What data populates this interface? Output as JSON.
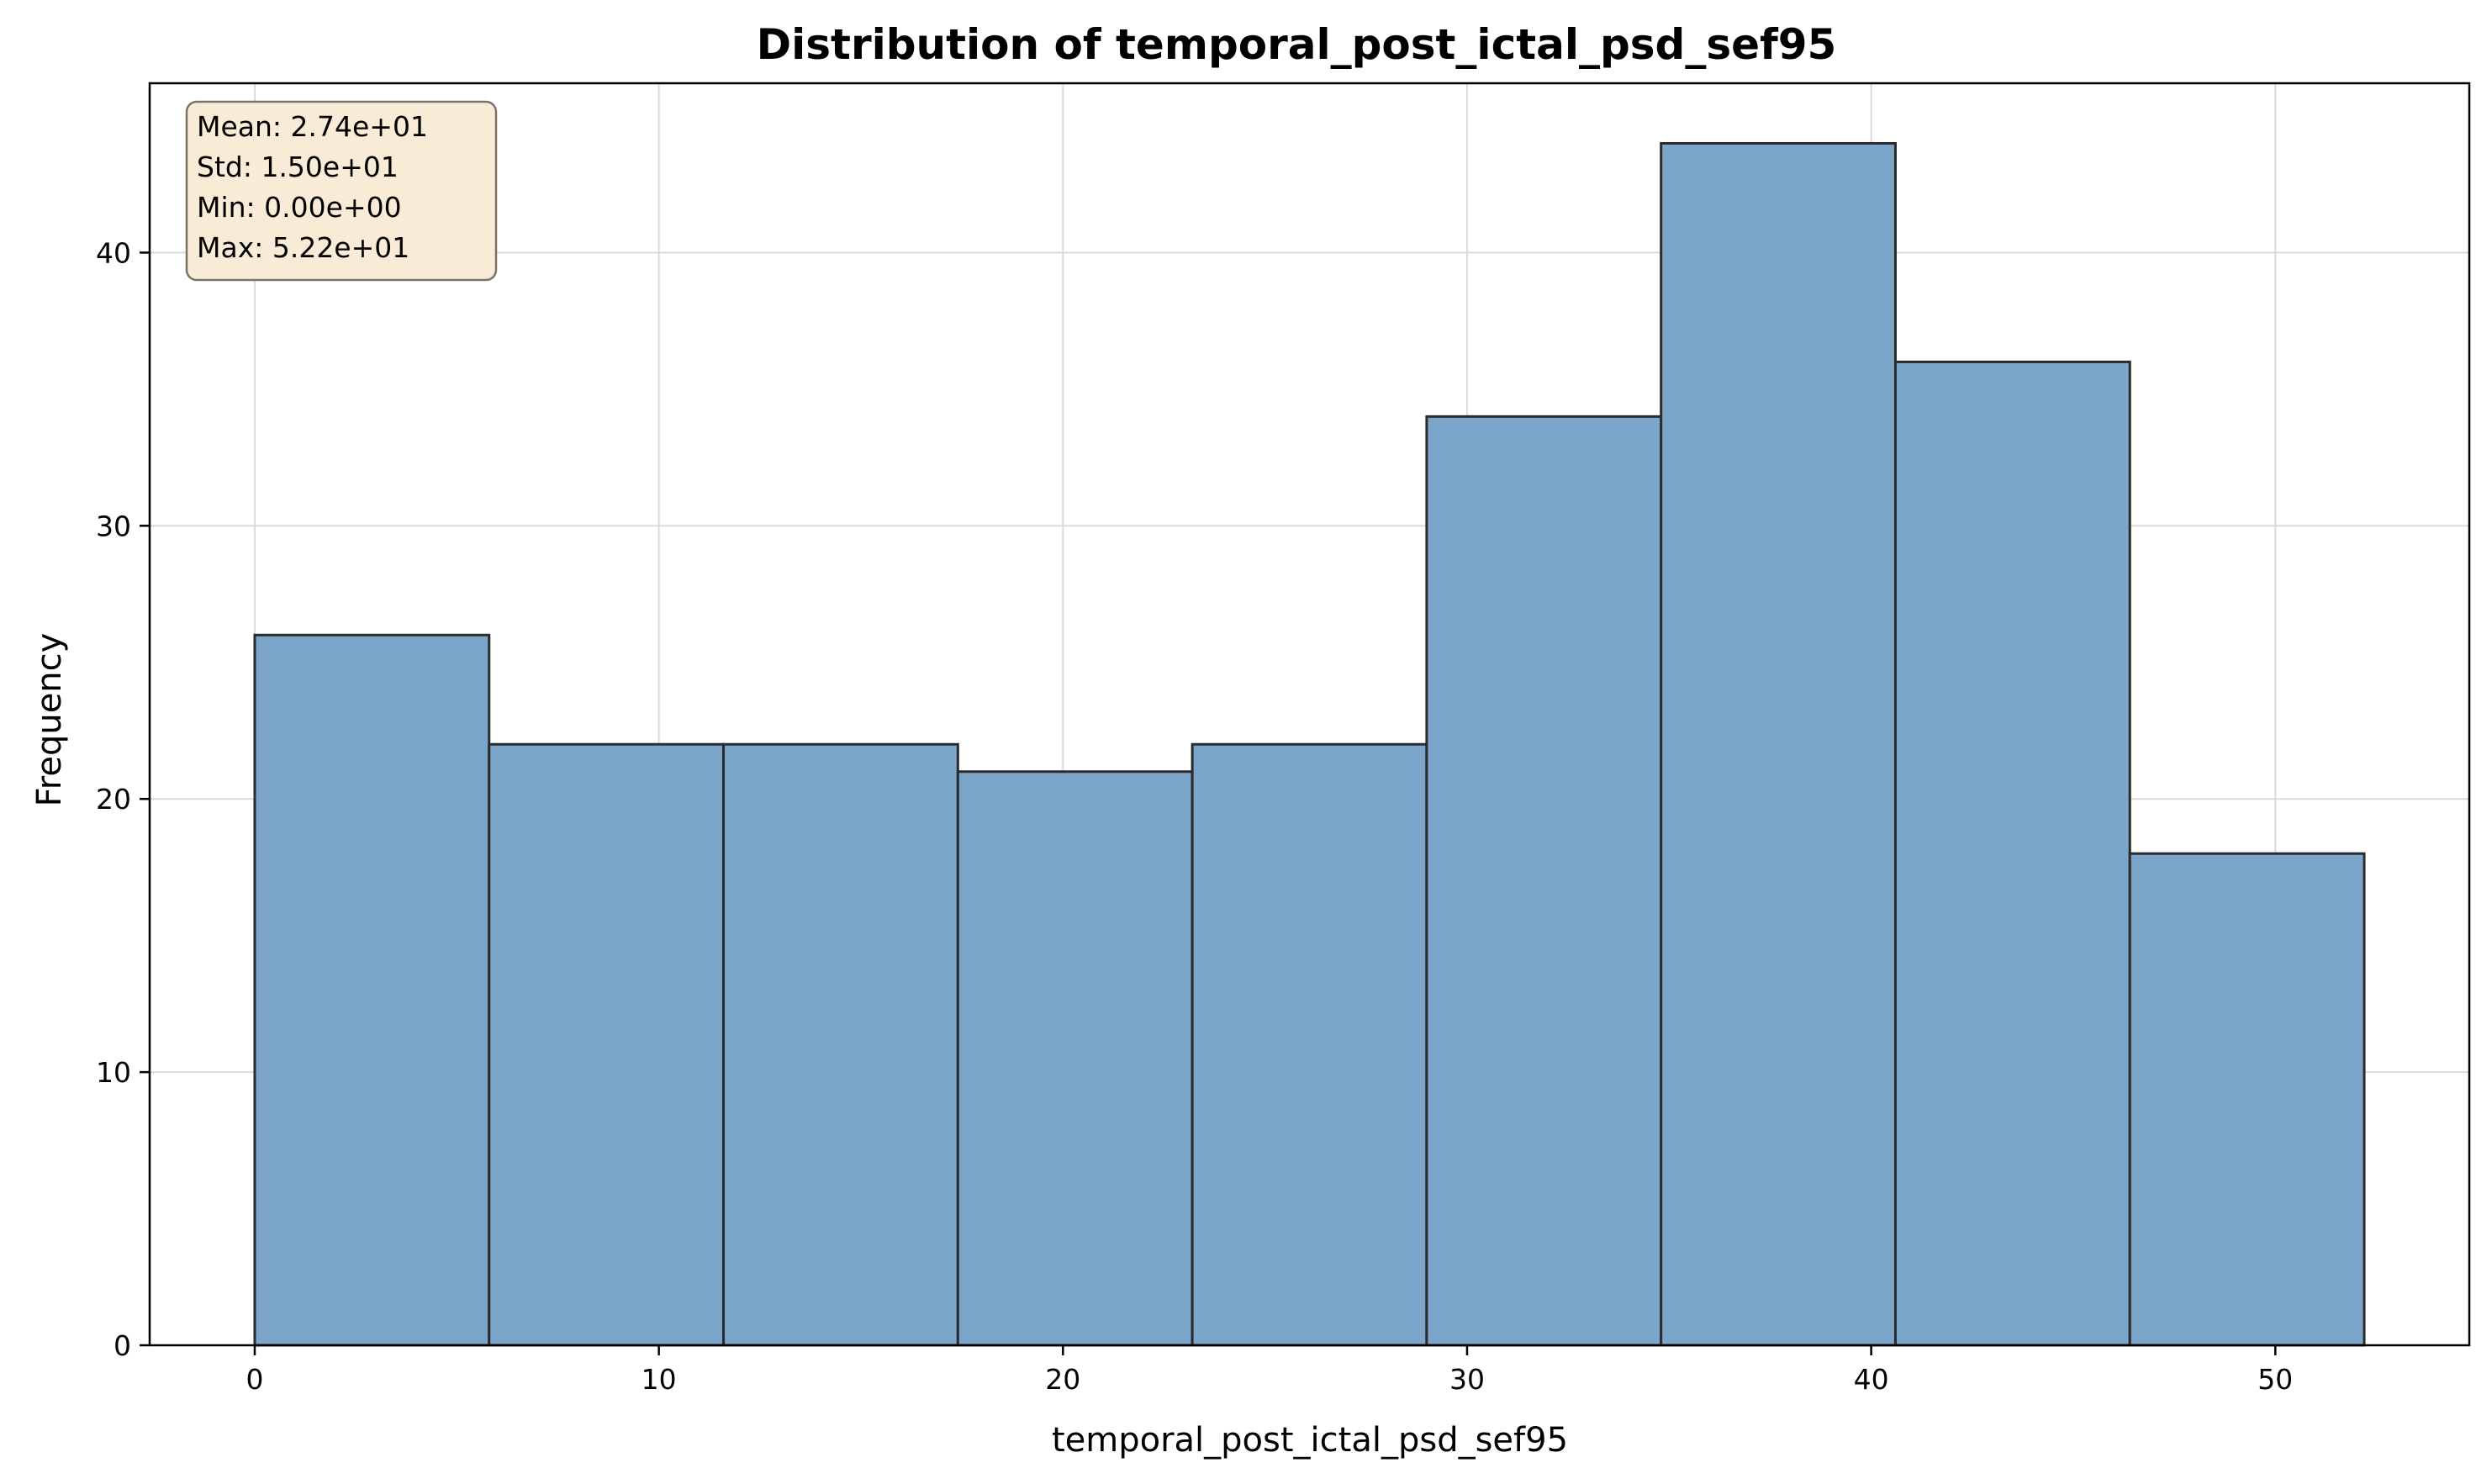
{
  "chart_data": {
    "type": "bar",
    "subtype": "histogram",
    "title": "Distribution of temporal_post_ictal_psd_sef95",
    "xlabel": "temporal_post_ictal_psd_sef95",
    "ylabel": "Frequency",
    "bin_edges": [
      0.0,
      5.8,
      11.6,
      17.4,
      23.2,
      29.0,
      34.8,
      40.6,
      46.4,
      52.2
    ],
    "values": [
      26,
      22,
      22,
      21,
      22,
      34,
      44,
      36,
      18
    ],
    "xlim": [
      -2.6,
      54.8
    ],
    "ylim": [
      0,
      46.2
    ],
    "xticks": [
      0,
      10,
      20,
      30,
      40,
      50
    ],
    "yticks": [
      0,
      10,
      20,
      30,
      40
    ],
    "grid": true,
    "bar_color": "#7ba5cb",
    "edge_color": "#2b2b2b",
    "stats_box": {
      "lines": [
        "Mean: 2.74e+01",
        "Std: 1.50e+01",
        "Min: 0.00e+00",
        "Max: 5.22e+01"
      ],
      "background": "#f8ecd6",
      "placement": "top-left"
    }
  }
}
